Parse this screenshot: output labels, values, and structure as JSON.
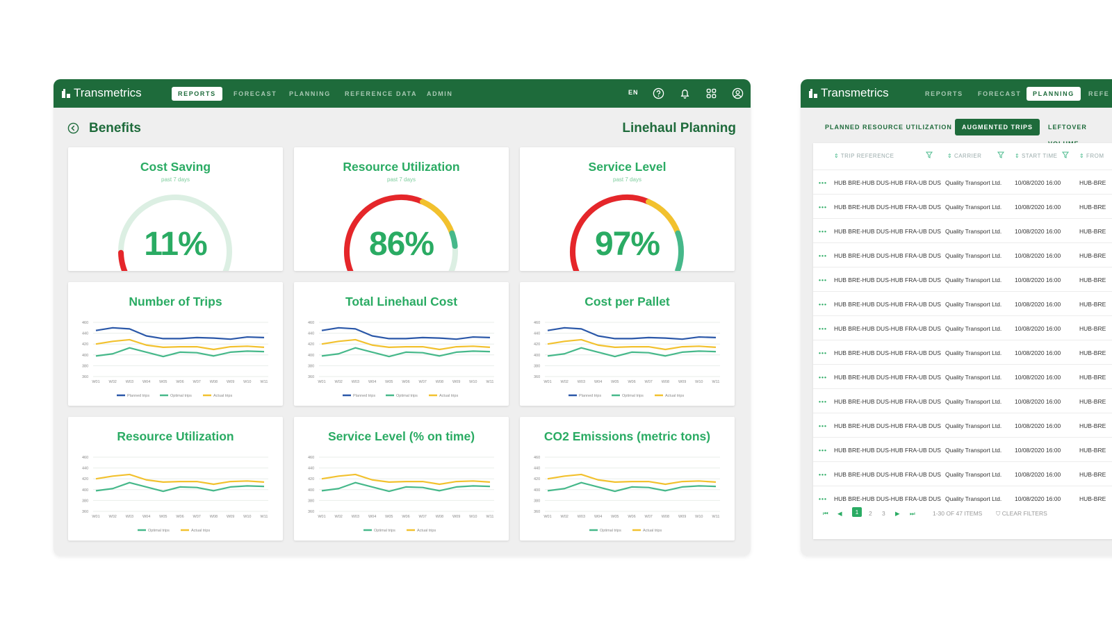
{
  "left": {
    "logo": "Transmetrics",
    "nav": [
      "REPORTS",
      "FORECAST",
      "PLANNING",
      "REFERENCE DATA",
      "ADMIN"
    ],
    "nav_active": 0,
    "lang": "EN",
    "back_title": "Benefits",
    "page_title": "Linehaul Planning",
    "gauges": [
      {
        "title": "Cost Saving",
        "sub": "past 7 days",
        "value": "11%",
        "level": 0.11
      },
      {
        "title": "Resource Utilization",
        "sub": "past 7 days",
        "value": "86%",
        "level": 0.86
      },
      {
        "title": "Service Level",
        "sub": "past 7 days",
        "value": "97%",
        "level": 0.97
      }
    ],
    "charts": [
      {
        "title": "Number of Trips",
        "three": true
      },
      {
        "title": "Total Linehaul Cost",
        "three": true
      },
      {
        "title": "Cost per Pallet",
        "three": true
      },
      {
        "title": "Resource Utilization",
        "three": false
      },
      {
        "title": "Service Level (% on time)",
        "three": false
      },
      {
        "title": "CO2 Emissions (metric tons)",
        "three": false
      }
    ]
  },
  "chart_data": [
    {
      "type": "line",
      "title": "Number of Trips",
      "x": [
        "W01",
        "W02",
        "W03",
        "W04",
        "W05",
        "W06",
        "W07",
        "W08",
        "W09",
        "W10",
        "W11"
      ],
      "ylim": [
        360,
        460
      ],
      "yticks": [
        360,
        380,
        400,
        420,
        440,
        460
      ],
      "series": [
        {
          "name": "Planned trips",
          "values": [
            445,
            450,
            448,
            435,
            430,
            430,
            432,
            431,
            429,
            433,
            432
          ]
        },
        {
          "name": "Optimal trips",
          "values": [
            398,
            402,
            413,
            405,
            397,
            405,
            404,
            398,
            405,
            407,
            406
          ]
        },
        {
          "name": "Actual trips",
          "values": [
            420,
            425,
            428,
            418,
            414,
            415,
            415,
            410,
            415,
            416,
            414
          ]
        }
      ]
    },
    {
      "type": "line",
      "title": "Total Linehaul Cost",
      "x": [
        "W01",
        "W02",
        "W03",
        "W04",
        "W05",
        "W06",
        "W07",
        "W08",
        "W09",
        "W10",
        "W11"
      ],
      "ylim": [
        360,
        460
      ],
      "yticks": [
        360,
        380,
        400,
        420,
        440,
        460
      ],
      "series": [
        {
          "name": "Planned trips",
          "values": [
            445,
            450,
            448,
            435,
            430,
            430,
            432,
            431,
            429,
            433,
            432
          ]
        },
        {
          "name": "Optimal trips",
          "values": [
            398,
            402,
            413,
            405,
            397,
            405,
            404,
            398,
            405,
            407,
            406
          ]
        },
        {
          "name": "Actual trips",
          "values": [
            420,
            425,
            428,
            418,
            414,
            415,
            415,
            410,
            415,
            416,
            414
          ]
        }
      ]
    },
    {
      "type": "line",
      "title": "Cost per Pallet",
      "x": [
        "W01",
        "W02",
        "W03",
        "W04",
        "W05",
        "W06",
        "W07",
        "W08",
        "W09",
        "W10",
        "W11"
      ],
      "ylim": [
        360,
        460
      ],
      "yticks": [
        360,
        380,
        400,
        420,
        440,
        460
      ],
      "series": [
        {
          "name": "Planned trips",
          "values": [
            445,
            450,
            448,
            435,
            430,
            430,
            432,
            431,
            429,
            433,
            432
          ]
        },
        {
          "name": "Optimal trips",
          "values": [
            398,
            402,
            413,
            405,
            397,
            405,
            404,
            398,
            405,
            407,
            406
          ]
        },
        {
          "name": "Actual trips",
          "values": [
            420,
            425,
            428,
            418,
            414,
            415,
            415,
            410,
            415,
            416,
            414
          ]
        }
      ]
    },
    {
      "type": "line",
      "title": "Resource Utilization",
      "x": [
        "W01",
        "W02",
        "W03",
        "W04",
        "W05",
        "W06",
        "W07",
        "W08",
        "W09",
        "W10",
        "W11"
      ],
      "ylim": [
        360,
        460
      ],
      "yticks": [
        360,
        380,
        400,
        420,
        440,
        460
      ],
      "series": [
        {
          "name": "Optimal trips",
          "values": [
            398,
            402,
            413,
            405,
            397,
            405,
            404,
            398,
            405,
            407,
            406
          ]
        },
        {
          "name": "Actual trips",
          "values": [
            420,
            425,
            428,
            418,
            414,
            415,
            415,
            410,
            415,
            416,
            414
          ]
        }
      ]
    },
    {
      "type": "line",
      "title": "Service Level (% on time)",
      "x": [
        "W01",
        "W02",
        "W03",
        "W04",
        "W05",
        "W06",
        "W07",
        "W08",
        "W09",
        "W10",
        "W11"
      ],
      "ylim": [
        360,
        460
      ],
      "yticks": [
        360,
        380,
        400,
        420,
        440,
        460
      ],
      "series": [
        {
          "name": "Optimal trips",
          "values": [
            398,
            402,
            413,
            405,
            397,
            405,
            404,
            398,
            405,
            407,
            406
          ]
        },
        {
          "name": "Actual trips",
          "values": [
            420,
            425,
            428,
            418,
            414,
            415,
            415,
            410,
            415,
            416,
            414
          ]
        }
      ]
    },
    {
      "type": "line",
      "title": "CO2 Emissions (metric tons)",
      "x": [
        "W01",
        "W02",
        "W03",
        "W04",
        "W05",
        "W06",
        "W07",
        "W08",
        "W09",
        "W10",
        "W11"
      ],
      "ylim": [
        360,
        460
      ],
      "yticks": [
        360,
        380,
        400,
        420,
        440,
        460
      ],
      "series": [
        {
          "name": "Optimal trips",
          "values": [
            398,
            402,
            413,
            405,
            397,
            405,
            404,
            398,
            405,
            407,
            406
          ]
        },
        {
          "name": "Actual trips",
          "values": [
            420,
            425,
            428,
            418,
            414,
            415,
            415,
            410,
            415,
            416,
            414
          ]
        }
      ]
    }
  ],
  "colors": {
    "planned": "#2a57a8",
    "optimal": "#46b88a",
    "actual": "#f2c12e",
    "brand": "#1e6b3b",
    "accent": "#2aab63"
  },
  "right": {
    "logo": "Transmetrics",
    "nav": [
      "REPORTS",
      "FORECAST",
      "PLANNING",
      "REFE"
    ],
    "nav_active": 2,
    "tabs": [
      "PLANNED RESOURCE UTILIZATION",
      "AUGMENTED TRIPS",
      "LEFTOVER VOLUME"
    ],
    "tab_active": 1,
    "columns": [
      "TRIP REFERENCE",
      "CARRIER",
      "START TIME",
      "FROM"
    ],
    "rows": [
      [
        "HUB BRE-HUB DUS-HUB FRA-UB DUS",
        "Quality Transport Ltd.",
        "10/08/2020 16:00",
        "HUB-BRE"
      ],
      [
        "HUB BRE-HUB DUS-HUB FRA-UB DUS",
        "Quality Transport Ltd.",
        "10/08/2020 16:00",
        "HUB-BRE"
      ],
      [
        "HUB BRE-HUB DUS-HUB FRA-UB DUS",
        "Quality Transport Ltd.",
        "10/08/2020 16:00",
        "HUB-BRE"
      ],
      [
        "HUB BRE-HUB DUS-HUB FRA-UB DUS",
        "Quality Transport Ltd.",
        "10/08/2020 16:00",
        "HUB-BRE"
      ],
      [
        "HUB BRE-HUB DUS-HUB FRA-UB DUS",
        "Quality Transport Ltd.",
        "10/08/2020 16:00",
        "HUB-BRE"
      ],
      [
        "HUB BRE-HUB DUS-HUB FRA-UB DUS",
        "Quality Transport Ltd.",
        "10/08/2020 16:00",
        "HUB-BRE"
      ],
      [
        "HUB BRE-HUB DUS-HUB FRA-UB DUS",
        "Quality Transport Ltd.",
        "10/08/2020 16:00",
        "HUB-BRE"
      ],
      [
        "HUB BRE-HUB DUS-HUB FRA-UB DUS",
        "Quality Transport Ltd.",
        "10/08/2020 16:00",
        "HUB-BRE"
      ],
      [
        "HUB BRE-HUB DUS-HUB FRA-UB DUS",
        "Quality Transport Ltd.",
        "10/08/2020 16:00",
        "HUB-BRE"
      ],
      [
        "HUB BRE-HUB DUS-HUB FRA-UB DUS",
        "Quality Transport Ltd.",
        "10/08/2020 16:00",
        "HUB-BRE"
      ],
      [
        "HUB BRE-HUB DUS-HUB FRA-UB DUS",
        "Quality Transport Ltd.",
        "10/08/2020 16:00",
        "HUB-BRE"
      ],
      [
        "HUB BRE-HUB DUS-HUB FRA-UB DUS",
        "Quality Transport Ltd.",
        "10/08/2020 16:00",
        "HUB-BRE"
      ],
      [
        "HUB BRE-HUB DUS-HUB FRA-UB DUS",
        "Quality Transport Ltd.",
        "10/08/2020 16:00",
        "HUB-BRE"
      ],
      [
        "HUB BRE-HUB DUS-HUB FRA-UB DUS",
        "Quality Transport Ltd.",
        "10/08/2020 16:00",
        "HUB-BRE"
      ]
    ],
    "row_menu": "•••",
    "pages": [
      "1",
      "2",
      "3"
    ],
    "current_page": "1",
    "items_info": "1-30 OF 47 ITEMS",
    "clear_filters": "CLEAR FILTERS"
  }
}
